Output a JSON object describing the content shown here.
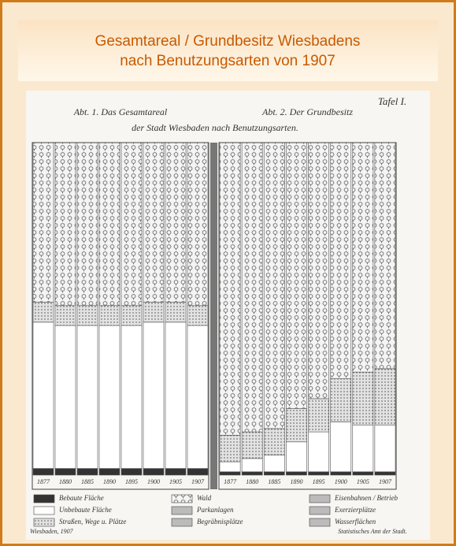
{
  "header": {
    "title_lines": [
      "Gesamtareal / Grundbesitz Wiesbadens",
      "nach Benutzungsarten von 1907"
    ]
  },
  "scan": {
    "plate": "Tafel I.",
    "subtitle": "der Stadt Wiesbaden nach Benutzungsarten.",
    "legend_extra": [
      "Parkanlagen",
      "Begräbnisplätze",
      "Eisenbahnen / Betrieb",
      "Exerzierplätze",
      "Wasserflächen"
    ],
    "footer_left": "Wiesbaden, 1907",
    "footer_right": "Statistisches Amt der Stadt."
  },
  "chart_data": [
    {
      "type": "stacked_bar",
      "title": "Abt. 1. Das Gesamtareal",
      "categories": [
        "1877",
        "1880",
        "1885",
        "1890",
        "1895",
        "1900",
        "1905",
        "1907"
      ],
      "ylim": [
        0,
        100
      ],
      "series": [
        {
          "name": "Bebaute Fläche",
          "color": "#333333",
          "values": [
            2,
            2,
            2,
            2,
            2,
            2,
            2,
            2
          ]
        },
        {
          "name": "Unbebaute Fläche",
          "color": "#ffffff",
          "values": [
            44,
            43,
            43,
            43,
            43,
            44,
            44,
            43
          ]
        },
        {
          "name": "Straßen, Wege u. Plätze",
          "color": "#c8c8c8",
          "values": [
            6,
            6,
            6,
            6,
            6,
            6,
            6,
            6
          ]
        },
        {
          "name": "Wald",
          "color": "#9a9a9a",
          "values": [
            48,
            49,
            49,
            49,
            49,
            48,
            48,
            49
          ]
        }
      ]
    },
    {
      "type": "stacked_bar",
      "title": "Abt. 2. Der Grundbesitz",
      "categories": [
        "1877",
        "1880",
        "1885",
        "1890",
        "1895",
        "1900",
        "1905",
        "1907"
      ],
      "ylim": [
        0,
        100
      ],
      "series": [
        {
          "name": "Bebaute Fläche",
          "color": "#333333",
          "values": [
            1,
            1,
            1,
            1,
            1,
            1,
            1,
            1
          ]
        },
        {
          "name": "Unbebaute Fläche",
          "color": "#ffffff",
          "values": [
            3,
            4,
            5,
            9,
            12,
            15,
            14,
            14
          ]
        },
        {
          "name": "Straßen, Wege u. Plätze",
          "color": "#c8c8c8",
          "values": [
            8,
            8,
            8,
            10,
            10,
            13,
            16,
            17
          ]
        },
        {
          "name": "Wald",
          "color": "#9a9a9a",
          "values": [
            88,
            87,
            86,
            80,
            77,
            71,
            69,
            68
          ]
        }
      ]
    }
  ]
}
